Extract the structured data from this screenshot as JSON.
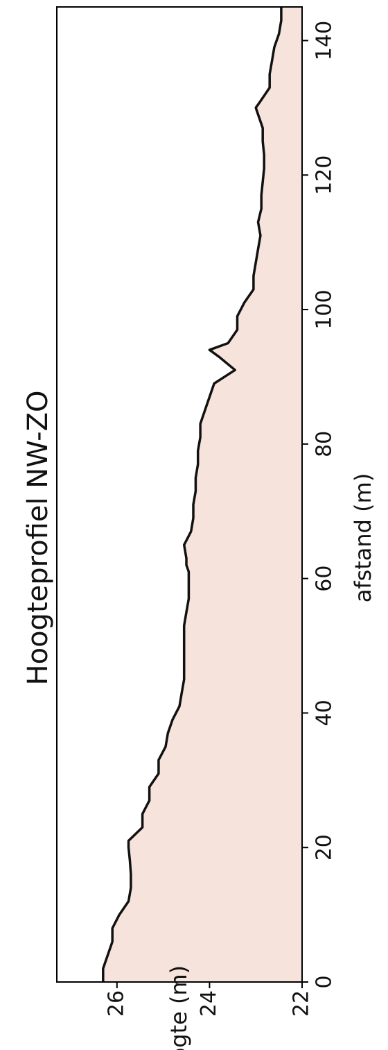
{
  "chart_data": {
    "type": "area",
    "title": "Hoogteprofiel NW-ZO",
    "xlabel": "afstand (m)",
    "ylabel": "hoogte (m)",
    "xlim": [
      0,
      145
    ],
    "ylim": [
      22,
      27.3
    ],
    "x_ticks": [
      "0",
      "20",
      "40",
      "60",
      "80",
      "100",
      "120",
      "140"
    ],
    "y_ticks": [
      "22",
      "24",
      "26"
    ],
    "grid": false,
    "orientation": "rotated 90° counter-clockwise",
    "colors": {
      "fill": "#f5e3dc",
      "line": "#111111",
      "frame": "#000000"
    },
    "series": [
      {
        "x": [
          0,
          2,
          4,
          6,
          8,
          10,
          12,
          14,
          16,
          18,
          20,
          21,
          23,
          25,
          27,
          29,
          31,
          33,
          35,
          37,
          39,
          41,
          43,
          45,
          47,
          49,
          51,
          53,
          55,
          57,
          59,
          61,
          62,
          63,
          65,
          67,
          69,
          71,
          73,
          75,
          77,
          79,
          81,
          83,
          85,
          87,
          89,
          91,
          93,
          94,
          95,
          97,
          99,
          101,
          103,
          105,
          107,
          109,
          111,
          113,
          115,
          117,
          119,
          121,
          123,
          125,
          127,
          129,
          130,
          131,
          133,
          135,
          137,
          139,
          141,
          143,
          145
        ],
        "y": [
          26.3,
          26.3,
          26.2,
          26.1,
          26.1,
          25.95,
          25.75,
          25.7,
          25.7,
          25.72,
          25.75,
          25.75,
          25.45,
          25.45,
          25.3,
          25.3,
          25.1,
          25.1,
          24.95,
          24.9,
          24.8,
          24.65,
          24.6,
          24.55,
          24.55,
          24.55,
          24.55,
          24.55,
          24.5,
          24.45,
          24.45,
          24.45,
          24.5,
          24.5,
          24.55,
          24.4,
          24.35,
          24.35,
          24.3,
          24.3,
          24.25,
          24.25,
          24.2,
          24.2,
          24.1,
          24.0,
          23.9,
          23.45,
          23.8,
          24.0,
          23.6,
          23.4,
          23.4,
          23.25,
          23.05,
          23.05,
          23.0,
          22.95,
          22.9,
          22.95,
          22.88,
          22.88,
          22.85,
          22.82,
          22.82,
          22.85,
          22.85,
          22.95,
          23.0,
          22.9,
          22.7,
          22.7,
          22.65,
          22.6,
          22.5,
          22.45,
          22.45
        ]
      }
    ]
  }
}
